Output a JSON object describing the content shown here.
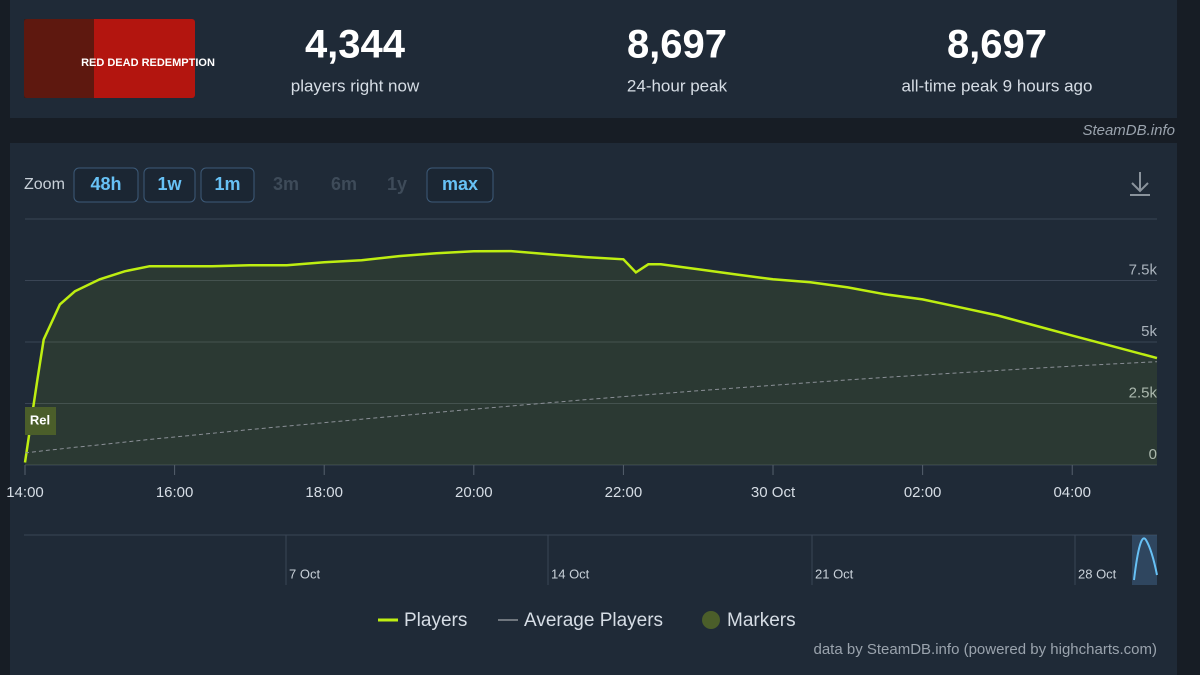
{
  "header": {
    "logo_text": "RED DEAD REDEMPTION",
    "stats": [
      {
        "value": "4,344",
        "label": "players right now"
      },
      {
        "value": "8,697",
        "label": "24-hour peak"
      },
      {
        "value": "8,697",
        "label": "all-time peak 9 hours ago"
      }
    ],
    "brand": "SteamDB.info"
  },
  "zoom": {
    "label": "Zoom",
    "buttons": [
      {
        "label": "48h",
        "enabled": true
      },
      {
        "label": "1w",
        "enabled": true
      },
      {
        "label": "1m",
        "enabled": true
      },
      {
        "label": "3m",
        "enabled": false
      },
      {
        "label": "6m",
        "enabled": false
      },
      {
        "label": "1y",
        "enabled": false
      },
      {
        "label": "max",
        "enabled": true
      }
    ]
  },
  "chart_data": {
    "type": "line",
    "x": [
      "14:00",
      "14:05",
      "14:10",
      "14:15",
      "14:28",
      "14:40",
      "15:00",
      "15:20",
      "15:40",
      "16:00",
      "16:30",
      "17:00",
      "17:30",
      "18:00",
      "18:30",
      "19:00",
      "19:30",
      "20:00",
      "20:30",
      "21:00",
      "21:30",
      "22:00",
      "22:10",
      "22:20",
      "22:30",
      "23:00",
      "23:30",
      "00:00",
      "00:30",
      "01:00",
      "01:30",
      "02:00",
      "02:30",
      "03:00",
      "03:30",
      "04:00",
      "04:30",
      "05:08"
    ],
    "series": [
      {
        "name": "Players",
        "color": "#beee11",
        "values": [
          100,
          1800,
          3500,
          5100,
          6530,
          7060,
          7550,
          7875,
          8080,
          8080,
          8080,
          8120,
          8120,
          8240,
          8320,
          8490,
          8610,
          8690,
          8697,
          8570,
          8450,
          8360,
          7830,
          8160,
          8160,
          7960,
          7750,
          7550,
          7430,
          7220,
          6940,
          6730,
          6410,
          6080,
          5670,
          5260,
          4860,
          4344
        ]
      },
      {
        "name": "Average Players",
        "color": "#8a8f96",
        "dashed": true,
        "values": [
          490,
          520,
          550,
          580,
          650,
          720,
          820,
          930,
          1040,
          1140,
          1290,
          1440,
          1580,
          1720,
          1860,
          2000,
          2140,
          2270,
          2400,
          2530,
          2660,
          2780,
          2820,
          2860,
          2900,
          3020,
          3130,
          3240,
          3350,
          3460,
          3560,
          3660,
          3750,
          3840,
          3930,
          4020,
          4100,
          4200
        ]
      }
    ],
    "markers_label": "Markers",
    "markers": [
      {
        "x": "14:00",
        "label": "Rel"
      }
    ],
    "xlim": [
      "14:00",
      "05:08"
    ],
    "xticks": [
      "14:00",
      "16:00",
      "18:00",
      "20:00",
      "22:00",
      {
        "value": "00:00",
        "label": "30 Oct"
      },
      "02:00",
      "04:00"
    ],
    "ylim": [
      0,
      10000
    ],
    "yticks": [
      0,
      {
        "value": 2500,
        "label": "2.5k"
      },
      {
        "value": 5000,
        "label": "5k"
      },
      {
        "value": 7500,
        "label": "7.5k"
      }
    ],
    "grid": true,
    "navigator_labels": [
      "7 Oct",
      "14 Oct",
      "21 Oct",
      "28 Oct"
    ],
    "credit": "data by SteamDB.info (powered by highcharts.com)"
  }
}
